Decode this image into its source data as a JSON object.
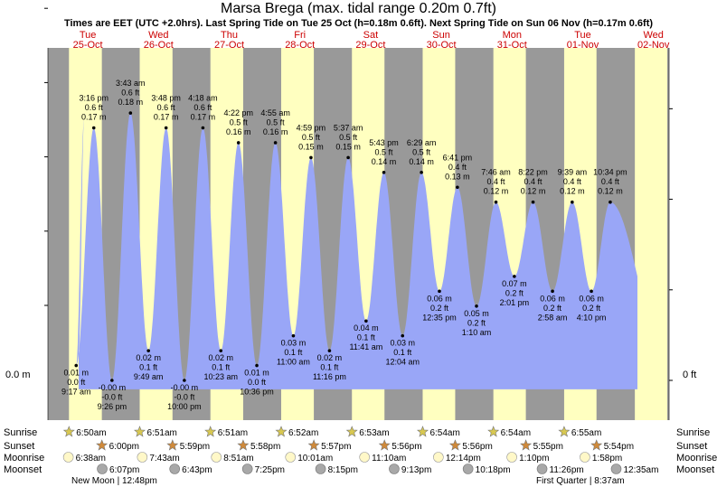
{
  "header": {
    "title": "Marsa Brega (max. tidal range 0.20m 0.7ft)",
    "subtitle": "Times are EET (UTC +2.0hrs). Last Spring Tide on Tue 25 Oct (h=0.18m 0.6ft). Next Spring Tide on Sun 06 Nov (h=0.17m 0.6ft)"
  },
  "chart_data": {
    "type": "area",
    "title": "Marsa Brega (max. tidal range 0.20m 0.7ft)",
    "y_unit": "m",
    "ylim": [
      -0.02,
      0.2
    ],
    "axis_labels": {
      "left_zero": "0.0 m",
      "right_zero": "0 ft"
    },
    "days": [
      {
        "dow": "Tue",
        "date": "25-Oct"
      },
      {
        "dow": "Wed",
        "date": "26-Oct"
      },
      {
        "dow": "Thu",
        "date": "27-Oct"
      },
      {
        "dow": "Fri",
        "date": "28-Oct"
      },
      {
        "dow": "Sat",
        "date": "29-Oct"
      },
      {
        "dow": "Sun",
        "date": "30-Oct"
      },
      {
        "dow": "Mon",
        "date": "31-Oct"
      },
      {
        "dow": "Tue",
        "date": "01-Nov"
      },
      {
        "dow": "Wed",
        "date": "02-Nov"
      }
    ],
    "day_colors": {
      "day": "#ffffc0",
      "night": "#999999",
      "tide": "#99a6f7",
      "label_red": "#cc0000"
    },
    "tides": [
      {
        "day": 0,
        "time": "9:17 am",
        "m": 0.01,
        "m_label": "0.01 m",
        "ft_label": "0.0 ft",
        "type": "low"
      },
      {
        "day": 0,
        "time": "3:16 pm",
        "m": 0.17,
        "m_label": "0.17 m",
        "ft_label": "0.6 ft",
        "type": "high"
      },
      {
        "day": 0,
        "time": "9:26 pm",
        "m": 0.0,
        "m_label": "-0.00 m",
        "ft_label": "-0.0 ft",
        "type": "low"
      },
      {
        "day": 1,
        "time": "3:43 am",
        "m": 0.18,
        "m_label": "0.18 m",
        "ft_label": "0.6 ft",
        "type": "high"
      },
      {
        "day": 1,
        "time": "9:49 am",
        "m": 0.02,
        "m_label": "0.02 m",
        "ft_label": "0.1 ft",
        "type": "low"
      },
      {
        "day": 1,
        "time": "3:48 pm",
        "m": 0.17,
        "m_label": "0.17 m",
        "ft_label": "0.6 ft",
        "type": "high"
      },
      {
        "day": 1,
        "time": "10:00 pm",
        "m": 0.0,
        "m_label": "-0.00 m",
        "ft_label": "-0.0 ft",
        "type": "low"
      },
      {
        "day": 2,
        "time": "4:18 am",
        "m": 0.17,
        "m_label": "0.17 m",
        "ft_label": "0.6 ft",
        "type": "high"
      },
      {
        "day": 2,
        "time": "10:23 am",
        "m": 0.02,
        "m_label": "0.02 m",
        "ft_label": "0.1 ft",
        "type": "low"
      },
      {
        "day": 2,
        "time": "4:22 pm",
        "m": 0.16,
        "m_label": "0.16 m",
        "ft_label": "0.5 ft",
        "type": "high"
      },
      {
        "day": 2,
        "time": "10:36 pm",
        "m": 0.01,
        "m_label": "0.01 m",
        "ft_label": "0.0 ft",
        "type": "low"
      },
      {
        "day": 3,
        "time": "4:55 am",
        "m": 0.16,
        "m_label": "0.16 m",
        "ft_label": "0.5 ft",
        "type": "high"
      },
      {
        "day": 3,
        "time": "11:00 am",
        "m": 0.03,
        "m_label": "0.03 m",
        "ft_label": "0.1 ft",
        "type": "low"
      },
      {
        "day": 3,
        "time": "4:59 pm",
        "m": 0.15,
        "m_label": "0.15 m",
        "ft_label": "0.5 ft",
        "type": "high"
      },
      {
        "day": 3,
        "time": "11:16 pm",
        "m": 0.02,
        "m_label": "0.02 m",
        "ft_label": "0.1 ft",
        "type": "low"
      },
      {
        "day": 4,
        "time": "5:37 am",
        "m": 0.15,
        "m_label": "0.15 m",
        "ft_label": "0.5 ft",
        "type": "high"
      },
      {
        "day": 4,
        "time": "11:41 am",
        "m": 0.04,
        "m_label": "0.04 m",
        "ft_label": "0.1 ft",
        "type": "low"
      },
      {
        "day": 4,
        "time": "5:43 pm",
        "m": 0.14,
        "m_label": "0.14 m",
        "ft_label": "0.5 ft",
        "type": "high"
      },
      {
        "day": 5,
        "time": "12:04 am",
        "m": 0.03,
        "m_label": "0.03 m",
        "ft_label": "0.1 ft",
        "type": "low"
      },
      {
        "day": 5,
        "time": "6:29 am",
        "m": 0.14,
        "m_label": "0.14 m",
        "ft_label": "0.5 ft",
        "type": "high"
      },
      {
        "day": 5,
        "time": "12:35 pm",
        "m": 0.06,
        "m_label": "0.06 m",
        "ft_label": "0.2 ft",
        "type": "low"
      },
      {
        "day": 5,
        "time": "6:41 pm",
        "m": 0.13,
        "m_label": "0.13 m",
        "ft_label": "0.4 ft",
        "type": "high"
      },
      {
        "day": 6,
        "time": "1:10 am",
        "m": 0.05,
        "m_label": "0.05 m",
        "ft_label": "0.2 ft",
        "type": "low"
      },
      {
        "day": 6,
        "time": "7:46 am",
        "m": 0.12,
        "m_label": "0.12 m",
        "ft_label": "0.4 ft",
        "type": "high"
      },
      {
        "day": 6,
        "time": "2:01 pm",
        "m": 0.07,
        "m_label": "0.07 m",
        "ft_label": "0.2 ft",
        "type": "low"
      },
      {
        "day": 6,
        "time": "8:22 pm",
        "m": 0.12,
        "m_label": "0.12 m",
        "ft_label": "0.4 ft",
        "type": "high"
      },
      {
        "day": 7,
        "time": "2:58 am",
        "m": 0.06,
        "m_label": "0.06 m",
        "ft_label": "0.2 ft",
        "type": "low"
      },
      {
        "day": 7,
        "time": "9:39 am",
        "m": 0.12,
        "m_label": "0.12 m",
        "ft_label": "0.4 ft",
        "type": "high"
      },
      {
        "day": 7,
        "time": "4:10 pm",
        "m": 0.06,
        "m_label": "0.06 m",
        "ft_label": "0.2 ft",
        "type": "low"
      },
      {
        "day": 7,
        "time": "10:34 pm",
        "m": 0.12,
        "m_label": "0.12 m",
        "ft_label": "0.4 ft",
        "type": "high"
      }
    ],
    "sun_moon": {
      "row_labels": [
        "Sunrise",
        "Sunset",
        "Moonrise",
        "Moonset"
      ],
      "sunrise": [
        "6:50am",
        "6:51am",
        "6:51am",
        "6:52am",
        "6:53am",
        "6:54am",
        "6:54am",
        "6:55am"
      ],
      "sunset": [
        "6:00pm",
        "5:59pm",
        "5:58pm",
        "5:57pm",
        "5:56pm",
        "5:56pm",
        "5:55pm",
        "5:54pm"
      ],
      "moonrise": [
        "6:38am",
        "7:43am",
        "8:51am",
        "10:01am",
        "11:10am",
        "12:14pm",
        "1:10pm",
        "1:58pm"
      ],
      "moonset": [
        "6:07pm",
        "6:43pm",
        "7:25pm",
        "8:15pm",
        "9:13pm",
        "10:18pm",
        "11:26pm",
        "12:35am"
      ],
      "moonset_day_offset": [
        0,
        0,
        0,
        0,
        0,
        0,
        0,
        1
      ]
    },
    "moon_phases": [
      {
        "text": "New Moon | 12:48pm",
        "day": 0,
        "time": "12:48 pm"
      },
      {
        "text": "First Quarter | 8:37am",
        "day": 7,
        "time": "8:37 am"
      }
    ]
  }
}
